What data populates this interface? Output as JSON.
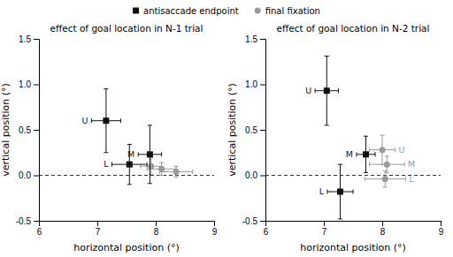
{
  "chart_data": [
    {
      "type": "scatter",
      "title": "effect of goal location in N-1 trial",
      "x_label": "horizontal position (°)",
      "y_label": "vertical position (°)",
      "xlim": [
        6,
        9
      ],
      "ylim": [
        -0.5,
        1.5
      ],
      "xticks": [
        6,
        7,
        8,
        9
      ],
      "yticks": [
        -0.5,
        {
          "value": 0,
          "label": "0.0"
        },
        0.5,
        {
          "value": 1.0,
          "label": "1.0"
        },
        1.5
      ],
      "hlines": [
        0
      ],
      "legend": "top",
      "series": [
        {
          "name": "antisaccade endpoint",
          "color": "#111111",
          "marker": "square",
          "x": [
            7.15,
            7.55,
            7.9
          ],
          "values": [
            0.6,
            0.12,
            0.23
          ],
          "x_error": [
            0.25,
            0.3,
            0.2
          ],
          "y_error": [
            0.35,
            0.22,
            0.32
          ],
          "point_labels": [
            "U",
            "L",
            "M"
          ]
        },
        {
          "name": "final fixation",
          "color": "#999999",
          "marker": "circle",
          "x": [
            7.92,
            8.1,
            8.35
          ],
          "values": [
            0.1,
            0.07,
            0.04
          ],
          "x_error": [
            0.18,
            0.25,
            0.28
          ],
          "y_error": [
            0.09,
            0.07,
            0.06
          ]
        }
      ]
    },
    {
      "type": "scatter",
      "title": "effect of goal location in N-2 trial",
      "x_label": "horizontal position (°)",
      "y_label": "vertical position (°)",
      "xlim": [
        6,
        9
      ],
      "ylim": [
        -0.5,
        1.5
      ],
      "xticks": [
        6,
        7,
        8,
        9
      ],
      "yticks": [
        -0.5,
        {
          "value": 0,
          "label": "0.0"
        },
        0.5,
        {
          "value": 1.0,
          "label": "1.0"
        },
        1.5
      ],
      "hlines": [
        0
      ],
      "series": [
        {
          "name": "antisaccade endpoint",
          "color": "#111111",
          "marker": "square",
          "x": [
            7.05,
            7.28,
            7.72
          ],
          "values": [
            0.93,
            -0.18,
            0.23
          ],
          "x_error": [
            0.2,
            0.22,
            0.16
          ],
          "y_error": [
            0.38,
            0.3,
            0.2
          ],
          "point_labels": [
            "U",
            "L",
            "M"
          ]
        },
        {
          "name": "final fixation",
          "color": "#999999",
          "marker": "circle",
          "x": [
            8.0,
            8.08,
            8.05
          ],
          "values": [
            0.28,
            0.12,
            -0.04
          ],
          "x_error": [
            0.22,
            0.3,
            0.35
          ],
          "y_error": [
            0.16,
            0.09,
            0.09
          ],
          "point_labels": [
            "U",
            "M",
            "L"
          ]
        }
      ]
    }
  ]
}
